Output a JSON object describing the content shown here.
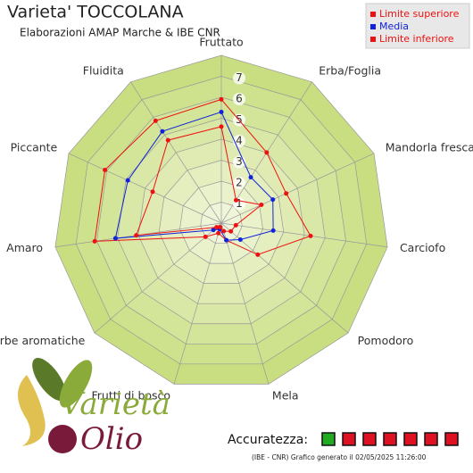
{
  "chart_data": {
    "type": "radar",
    "title": "Varieta' TOCCOLANA",
    "subtitle": "Elaborazioni AMAP Marche & IBE CNR",
    "categories": [
      "Fruttato",
      "Erba/Foglia",
      "Mandorla fresca",
      "Carciofo",
      "Pomodoro",
      "Mela",
      "Frutti di bosco",
      "Erbe aromatiche",
      "Amaro",
      "Piccante",
      "Fluidita"
    ],
    "series": [
      {
        "name": "Limite superiore",
        "color": "#ee1111",
        "values": [
          5.9,
          4.0,
          3.4,
          4.3,
          2.3,
          0.85,
          0.5,
          1.0,
          6.1,
          6.1,
          5.8
        ]
      },
      {
        "name": "Media",
        "color": "#1122dd",
        "values": [
          5.3,
          2.6,
          2.7,
          2.5,
          1.2,
          0.85,
          0.3,
          0.5,
          5.1,
          4.9,
          5.2
        ]
      },
      {
        "name": "Limite inferiore",
        "color": "#ee1111",
        "values": [
          4.6,
          1.3,
          2.1,
          0.7,
          0.6,
          0.4,
          0.2,
          0.3,
          4.1,
          3.6,
          4.7
        ]
      }
    ],
    "ylim": [
      0,
      8
    ],
    "yticks": [
      1,
      2,
      3,
      4,
      5,
      6,
      7
    ],
    "grid": true,
    "legend": "top-right"
  },
  "footer": {
    "accuracy_label": "Accuratezza:",
    "accuracy_boxes": [
      "#22aa22",
      "#dd1122",
      "#dd1122",
      "#dd1122",
      "#dd1122",
      "#dd1122",
      "#dd1122"
    ],
    "note": "(IBE - CNR) Grafico generato il 02/05/2025 11:26:00"
  },
  "logo": {
    "word1": "Varietà",
    "word2": "Olio"
  }
}
